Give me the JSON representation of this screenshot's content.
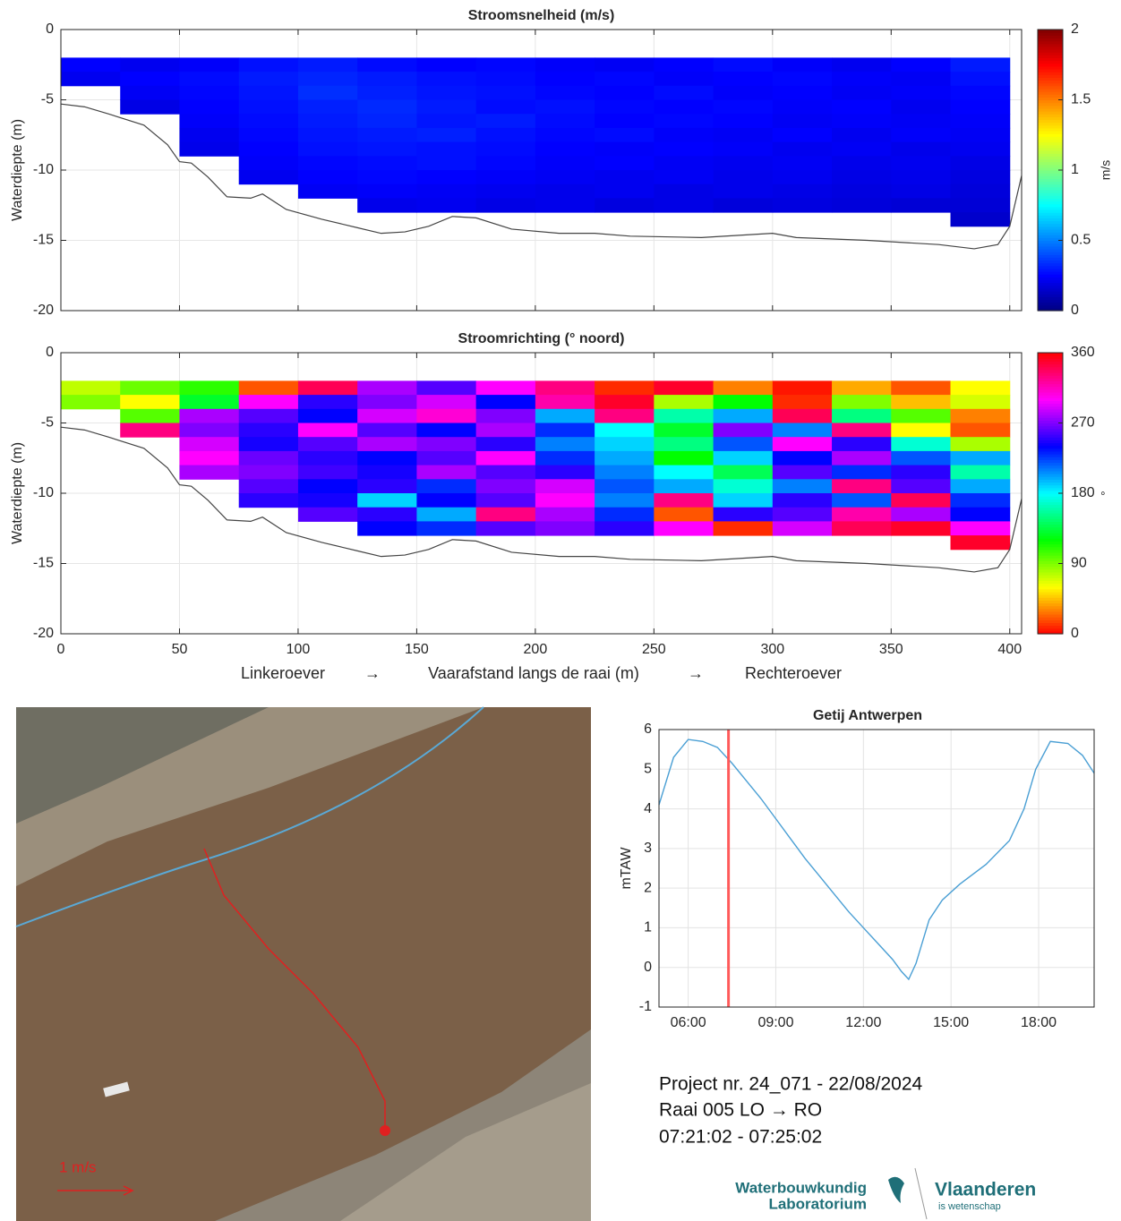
{
  "chart_data": [
    {
      "type": "heatmap",
      "title": "Stroomsnelheid (m/s)",
      "ylabel": "Waterdiepte (m)",
      "x": [
        12.5,
        37.5,
        62.5,
        87.5,
        112.5,
        137.5,
        162.5,
        187.5,
        212.5,
        237.5,
        262.5,
        287.5,
        312.5,
        337.5,
        362.5,
        387.5
      ],
      "y": [
        -2.5,
        -3.5,
        -4.5,
        -5.5,
        -6.5,
        -7.5,
        -8.5,
        -9.5,
        -10.5,
        -11.5,
        -12.5,
        -13.5
      ],
      "z": [
        [
          0.25,
          0.22,
          0.24,
          0.28,
          0.3,
          0.27,
          0.25,
          0.26,
          0.24,
          0.23,
          0.25,
          0.27,
          0.24,
          0.22,
          0.25,
          0.3
        ],
        [
          0.22,
          0.25,
          0.27,
          0.3,
          0.32,
          0.3,
          0.28,
          0.27,
          0.25,
          0.26,
          0.24,
          0.25,
          0.26,
          0.24,
          0.23,
          0.28
        ],
        [
          null,
          0.23,
          0.26,
          0.29,
          0.34,
          0.31,
          0.29,
          0.28,
          0.26,
          0.25,
          0.27,
          0.24,
          0.25,
          0.23,
          0.24,
          0.26
        ],
        [
          null,
          0.2,
          0.25,
          0.28,
          0.31,
          0.33,
          0.3,
          0.27,
          0.28,
          0.26,
          0.25,
          0.26,
          0.24,
          0.25,
          0.22,
          0.25
        ],
        [
          null,
          null,
          0.24,
          0.27,
          0.3,
          0.32,
          0.29,
          0.3,
          0.27,
          0.25,
          0.26,
          0.25,
          0.23,
          0.24,
          0.23,
          0.24
        ],
        [
          null,
          null,
          0.22,
          0.26,
          0.29,
          0.3,
          0.31,
          0.28,
          0.26,
          0.27,
          0.24,
          0.23,
          0.25,
          0.22,
          0.24,
          0.23
        ],
        [
          null,
          null,
          0.21,
          0.25,
          0.28,
          0.29,
          0.28,
          0.27,
          0.25,
          0.24,
          0.25,
          0.24,
          0.22,
          0.23,
          0.21,
          0.22
        ],
        [
          null,
          null,
          null,
          0.24,
          0.26,
          0.27,
          0.28,
          0.26,
          0.24,
          0.25,
          0.23,
          0.22,
          0.23,
          0.21,
          0.22,
          0.2
        ],
        [
          null,
          null,
          null,
          0.22,
          0.25,
          0.26,
          0.25,
          0.24,
          0.23,
          0.22,
          0.23,
          0.21,
          0.22,
          0.2,
          0.21,
          0.19
        ],
        [
          null,
          null,
          null,
          null,
          0.23,
          0.24,
          0.23,
          0.22,
          0.21,
          0.22,
          0.2,
          0.21,
          0.2,
          0.19,
          0.2,
          0.18
        ],
        [
          null,
          null,
          null,
          null,
          null,
          0.21,
          0.22,
          0.2,
          0.21,
          0.19,
          0.2,
          0.18,
          0.19,
          0.18,
          0.17,
          0.17
        ],
        [
          null,
          null,
          null,
          null,
          null,
          null,
          null,
          null,
          null,
          null,
          null,
          null,
          null,
          null,
          null,
          0.15
        ]
      ],
      "colormap": "jet",
      "clim": [
        0,
        2
      ],
      "cticks": [
        0,
        0.5,
        1,
        1.5,
        2
      ],
      "clabel": "m/s",
      "bed": {
        "x": [
          0,
          10,
          20,
          35,
          45,
          50,
          55,
          62,
          70,
          80,
          85,
          95,
          110,
          125,
          135,
          145,
          155,
          165,
          175,
          190,
          210,
          225,
          240,
          270,
          300,
          310,
          340,
          370,
          385,
          395,
          400,
          405
        ],
        "y": [
          -5.3,
          -5.5,
          -6,
          -6.8,
          -8.2,
          -9.4,
          -9.5,
          -10.5,
          -11.9,
          -12,
          -11.7,
          -12.8,
          -13.5,
          -14.1,
          -14.5,
          -14.4,
          -14,
          -13.3,
          -13.4,
          -14.2,
          -14.5,
          -14.5,
          -14.7,
          -14.8,
          -14.5,
          -14.8,
          -15,
          -15.3,
          -15.6,
          -15.3,
          -14,
          -10.4
        ]
      },
      "xlim": [
        0,
        405
      ],
      "xticks": [
        0,
        50,
        100,
        150,
        200,
        250,
        300,
        350,
        400
      ],
      "show_xticklabels": false,
      "ylim": [
        -20,
        0
      ],
      "yticks": [
        0,
        -5,
        -10,
        -15,
        -20
      ],
      "grid": true
    },
    {
      "type": "heatmap",
      "title": "Stroomrichting (° noord)",
      "ylabel": "Waterdiepte (m)",
      "xlabel": [
        "Linkeroever",
        "→",
        "Vaarafstand langs de raai (m)",
        "→",
        "Rechteroever"
      ],
      "x": [
        12.5,
        37.5,
        62.5,
        87.5,
        112.5,
        137.5,
        162.5,
        187.5,
        212.5,
        237.5,
        262.5,
        287.5,
        312.5,
        337.5,
        362.5,
        387.5
      ],
      "y": [
        -2.5,
        -3.5,
        -4.5,
        -5.5,
        -6.5,
        -7.5,
        -8.5,
        -9.5,
        -10.5,
        -11.5,
        -12.5,
        -13.5
      ],
      "z": [
        [
          75,
          95,
          110,
          20,
          340,
          280,
          260,
          300,
          330,
          10,
          350,
          30,
          5,
          40,
          20,
          60
        ],
        [
          90,
          60,
          130,
          300,
          250,
          270,
          290,
          240,
          320,
          350,
          80,
          120,
          10,
          90,
          45,
          70
        ],
        [
          null,
          100,
          280,
          260,
          240,
          290,
          310,
          270,
          200,
          330,
          160,
          200,
          340,
          150,
          100,
          30
        ],
        [
          null,
          330,
          270,
          250,
          300,
          260,
          240,
          280,
          230,
          180,
          130,
          270,
          210,
          330,
          60,
          20
        ],
        [
          null,
          null,
          290,
          245,
          260,
          280,
          270,
          250,
          210,
          190,
          150,
          220,
          300,
          250,
          170,
          80
        ],
        [
          null,
          null,
          300,
          265,
          250,
          240,
          260,
          300,
          230,
          200,
          120,
          190,
          240,
          280,
          220,
          200
        ],
        [
          null,
          null,
          280,
          270,
          255,
          245,
          280,
          260,
          250,
          210,
          180,
          140,
          260,
          230,
          250,
          160
        ],
        [
          null,
          null,
          null,
          260,
          240,
          250,
          230,
          270,
          290,
          220,
          200,
          170,
          210,
          330,
          260,
          200
        ],
        [
          null,
          null,
          null,
          250,
          245,
          190,
          240,
          260,
          300,
          210,
          330,
          190,
          250,
          220,
          340,
          230
        ],
        [
          null,
          null,
          null,
          null,
          260,
          250,
          200,
          330,
          280,
          230,
          20,
          250,
          260,
          320,
          280,
          240
        ],
        [
          null,
          null,
          null,
          null,
          null,
          240,
          230,
          260,
          270,
          250,
          300,
          10,
          290,
          340,
          350,
          300
        ],
        [
          null,
          null,
          null,
          null,
          null,
          null,
          null,
          null,
          null,
          null,
          null,
          null,
          null,
          null,
          null,
          350
        ]
      ],
      "colormap": "hsv",
      "clim": [
        0,
        360
      ],
      "cticks": [
        0,
        90,
        180,
        270,
        360
      ],
      "clabel": "°",
      "bed": {
        "x": [
          0,
          10,
          20,
          35,
          45,
          50,
          55,
          62,
          70,
          80,
          85,
          95,
          110,
          125,
          135,
          145,
          155,
          165,
          175,
          190,
          210,
          225,
          240,
          270,
          300,
          310,
          340,
          370,
          385,
          395,
          400,
          405
        ],
        "y": [
          -5.3,
          -5.5,
          -6,
          -6.8,
          -8.2,
          -9.4,
          -9.5,
          -10.5,
          -11.9,
          -12,
          -11.7,
          -12.8,
          -13.5,
          -14.1,
          -14.5,
          -14.4,
          -14,
          -13.3,
          -13.4,
          -14.2,
          -14.5,
          -14.5,
          -14.7,
          -14.8,
          -14.5,
          -14.8,
          -15,
          -15.3,
          -15.6,
          -15.3,
          -14,
          -10.4
        ]
      },
      "xlim": [
        0,
        405
      ],
      "xticks": [
        0,
        50,
        100,
        150,
        200,
        250,
        300,
        350,
        400
      ],
      "show_xticklabels": true,
      "ylim": [
        -20,
        0
      ],
      "yticks": [
        0,
        -5,
        -10,
        -15,
        -20
      ],
      "grid": true
    },
    {
      "type": "line",
      "title": "Getij Antwerpen",
      "ylabel": "mTAW",
      "x": [
        5,
        5.5,
        6,
        6.5,
        7,
        7.5,
        8,
        8.5,
        9,
        9.5,
        10,
        10.5,
        11,
        11.5,
        12,
        12.5,
        13,
        13.3,
        13.55,
        13.8,
        14.25,
        14.7,
        15.3,
        16.2,
        17,
        17.5,
        17.9,
        18.4,
        19,
        19.5,
        19.9
      ],
      "series": [
        {
          "color": "#4a9fd4",
          "values": [
            4.1,
            5.3,
            5.75,
            5.7,
            5.55,
            5.15,
            4.7,
            4.25,
            3.75,
            3.25,
            2.75,
            2.3,
            1.85,
            1.4,
            1.0,
            0.6,
            0.2,
            -0.1,
            -0.3,
            0.1,
            1.2,
            1.7,
            2.1,
            2.6,
            3.2,
            4.0,
            5.0,
            5.7,
            5.65,
            5.35,
            4.9
          ]
        }
      ],
      "time_marker": 7.38,
      "marker_color": "#ff5a5a",
      "xlim": [
        5,
        19.9
      ],
      "xticks": [
        {
          "value": 6,
          "label": "06:00"
        },
        {
          "value": 9,
          "label": "09:00"
        },
        {
          "value": 12,
          "label": "12:00"
        },
        {
          "value": 15,
          "label": "15:00"
        },
        {
          "value": 18,
          "label": "18:00"
        }
      ],
      "ylim": [
        -1,
        6
      ],
      "yticks": [
        -1,
        0,
        1,
        2,
        3,
        4,
        5,
        6
      ],
      "grid": true
    }
  ],
  "photo": {
    "scale_label": "1 m/s"
  },
  "info": {
    "line1": "Project nr. 24_071  -  22/08/2024",
    "line2": "Raai 005    LO → RO",
    "line3": "07:21:02 - 07:25:02"
  },
  "logos": {
    "wl_1": "Waterbouwkundig",
    "wl_2": "Laboratorium",
    "vl_1": "Vlaanderen",
    "vl_2": "is wetenschap"
  }
}
